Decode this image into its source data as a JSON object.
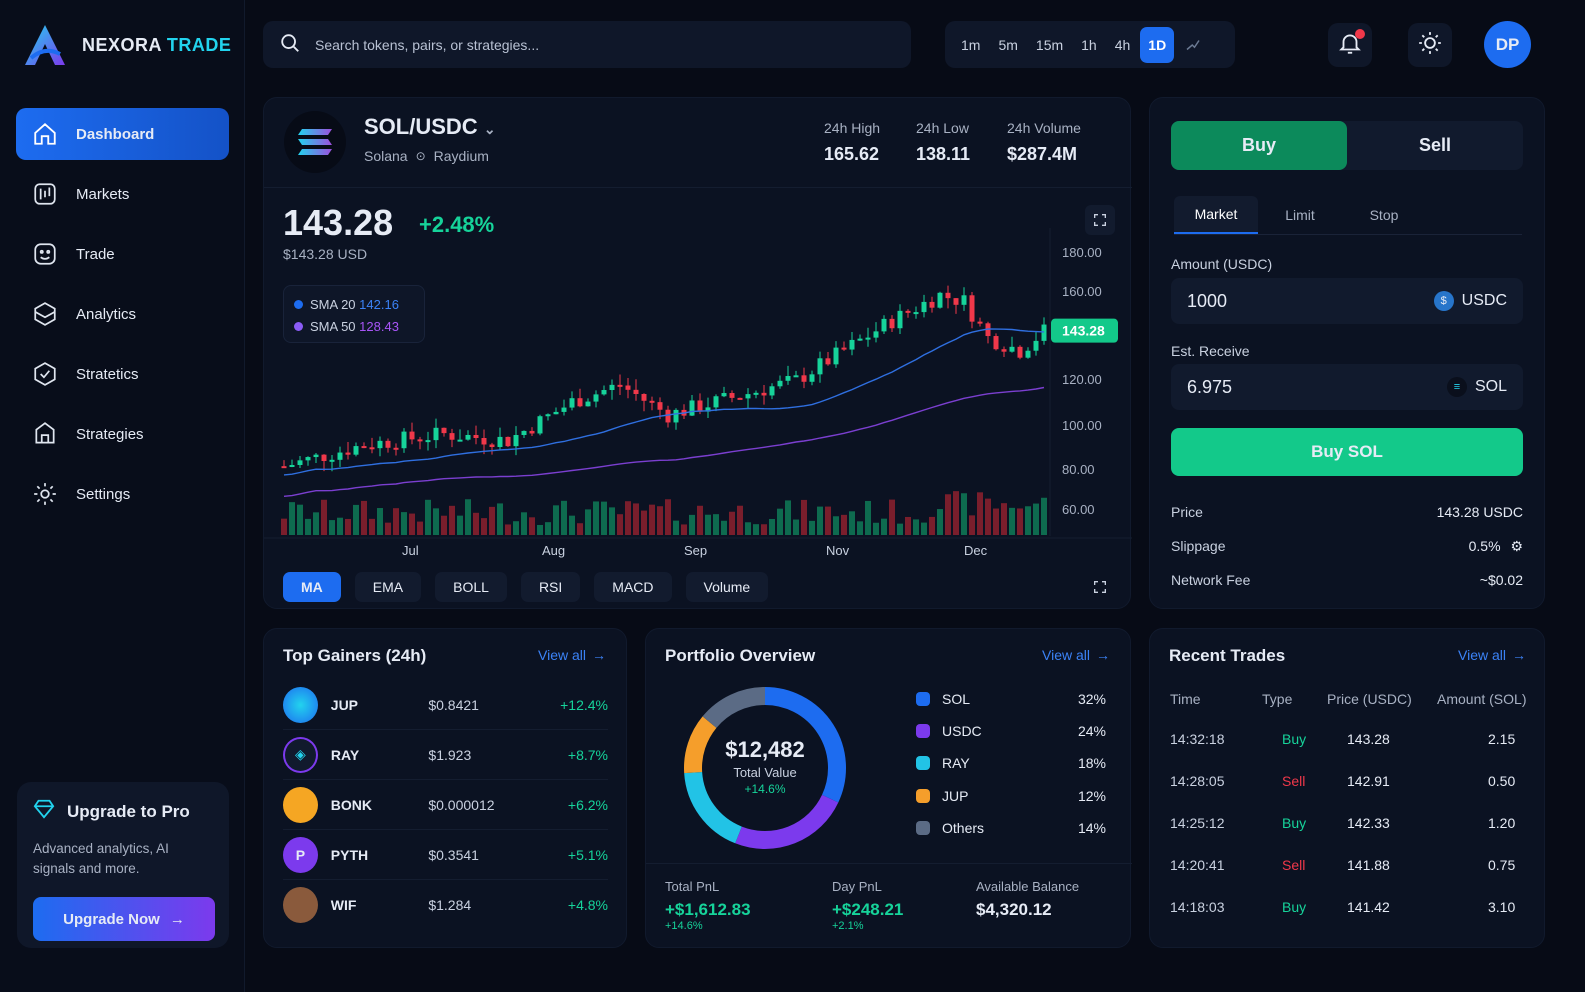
{
  "brand": {
    "name": "NEXORA",
    "accent": "TRADE"
  },
  "nav": [
    {
      "label": "Dashboard",
      "icon": "home-icon"
    },
    {
      "label": "Markets",
      "icon": "markets-icon"
    },
    {
      "label": "Trade",
      "icon": "trade-icon"
    },
    {
      "label": "Analytics",
      "icon": "analytics-icon"
    },
    {
      "label": "Stratetics",
      "icon": "stratetics-icon"
    },
    {
      "label": "Strategies",
      "icon": "strategies-icon"
    },
    {
      "label": "Settings",
      "icon": "settings-icon"
    }
  ],
  "upgrade": {
    "title": "Upgrade to Pro",
    "desc": "Advanced analytics, AI signals and more.",
    "button": "Upgrade Now"
  },
  "search": {
    "placeholder": "Search tokens, pairs, or strategies..."
  },
  "timeframes": [
    "1m",
    "5m",
    "15m",
    "1h",
    "4h",
    "1D"
  ],
  "active_timeframe": "1D",
  "user": {
    "initials": "DP"
  },
  "pair": {
    "name": "SOL/USDC",
    "chain": "Solana",
    "dex": "Raydium",
    "high_label": "24h High",
    "high": "165.62",
    "low_label": "24h Low",
    "low": "138.11",
    "vol_label": "24h Volume",
    "vol": "$287.4M",
    "price": "143.28",
    "change": "+2.48%",
    "usd": "$143.28 USD",
    "sma20_label": "SMA 20",
    "sma20": "142.16",
    "sma50_label": "SMA 50",
    "sma50": "128.43",
    "price_tag": "143.28"
  },
  "indicators": [
    "MA",
    "EMA",
    "BOLL",
    "RSI",
    "MACD",
    "Volume"
  ],
  "chart_data": {
    "type": "candlestick",
    "x_ticks": [
      "Jul",
      "Aug",
      "Sep",
      "Nov",
      "Dec"
    ],
    "y_ticks": [
      "180.00",
      "160.00",
      "120.00",
      "100.00",
      "80.00",
      "60.00"
    ],
    "series": [
      {
        "name": "SMA 20",
        "value": 142.16
      },
      {
        "name": "SMA 50",
        "value": 128.43
      }
    ],
    "last": 143.28
  },
  "order": {
    "buy": "Buy",
    "sell": "Sell",
    "tabs": [
      "Market",
      "Limit",
      "Stop"
    ],
    "amount_label": "Amount (USDC)",
    "amount": "1000",
    "amount_cur": "USDC",
    "receive_label": "Est. Receive",
    "receive": "6.975",
    "receive_cur": "SOL",
    "submit": "Buy SOL",
    "info": [
      {
        "k": "Price",
        "v": "143.28 USDC"
      },
      {
        "k": "Slippage",
        "v": "0.5%"
      },
      {
        "k": "Network Fee",
        "v": "~$0.02"
      }
    ]
  },
  "gainers": {
    "title": "Top Gainers (24h)",
    "view_all": "View all",
    "rows": [
      {
        "sym": "JUP",
        "price": "$0.8421",
        "chg": "+12.4%"
      },
      {
        "sym": "RAY",
        "price": "$1.923",
        "chg": "+8.7%"
      },
      {
        "sym": "BONK",
        "price": "$0.000012",
        "chg": "+6.2%"
      },
      {
        "sym": "PYTH",
        "price": "$0.3541",
        "chg": "+5.1%"
      },
      {
        "sym": "WIF",
        "price": "$1.284",
        "chg": "+4.8%"
      }
    ]
  },
  "portfolio": {
    "title": "Portfolio Overview",
    "view_all": "View all",
    "total": "$12,482",
    "total_label": "Total Value",
    "total_chg": "+14.6%",
    "alloc": [
      {
        "name": "SOL",
        "pct": "32%",
        "value": 32,
        "color": "#1d6cf0"
      },
      {
        "name": "USDC",
        "pct": "24%",
        "value": 24,
        "color": "#7c3aed"
      },
      {
        "name": "RAY",
        "pct": "18%",
        "value": 18,
        "color": "#22c3e6"
      },
      {
        "name": "JUP",
        "pct": "12%",
        "value": 12,
        "color": "#f59e2b"
      },
      {
        "name": "Others",
        "pct": "14%",
        "value": 14,
        "color": "#5b6b85"
      }
    ],
    "pnl_label": "Total PnL",
    "pnl": "+$1,612.83",
    "pnl_pct": "+14.6%",
    "day_label": "Day PnL",
    "day": "+$248.21",
    "day_pct": "+2.1%",
    "bal_label": "Available Balance",
    "bal": "$4,320.12"
  },
  "trades": {
    "title": "Recent Trades",
    "view_all": "View all",
    "headers": [
      "Time",
      "Type",
      "Price (USDC)",
      "Amount (SOL)"
    ],
    "rows": [
      {
        "time": "14:32:18",
        "type": "Buy",
        "price": "143.28",
        "amt": "2.15"
      },
      {
        "time": "14:28:05",
        "type": "Sell",
        "price": "142.91",
        "amt": "0.50"
      },
      {
        "time": "14:25:12",
        "type": "Buy",
        "price": "142.33",
        "amt": "1.20"
      },
      {
        "time": "14:20:41",
        "type": "Sell",
        "price": "141.88",
        "amt": "0.75"
      },
      {
        "time": "14:18:03",
        "type": "Buy",
        "price": "141.42",
        "amt": "3.10"
      }
    ]
  }
}
